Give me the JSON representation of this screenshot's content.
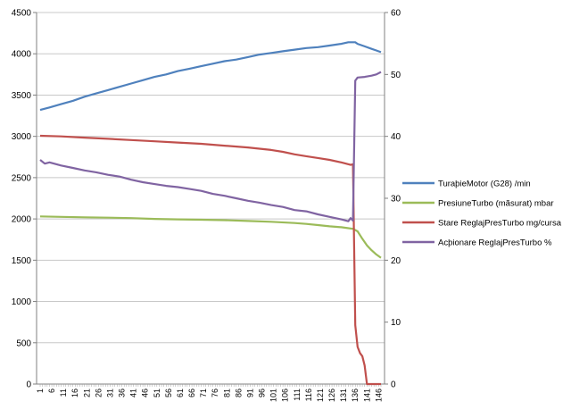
{
  "chart_data": {
    "type": "line",
    "title": "",
    "xlabel": "",
    "ylabel": "",
    "y2label": "",
    "xlim": [
      1,
      147
    ],
    "ylim": [
      0,
      4500
    ],
    "y2lim": [
      0,
      60
    ],
    "yticks": [
      0,
      500,
      1000,
      1500,
      2000,
      2500,
      3000,
      3500,
      4000,
      4500
    ],
    "y2ticks": [
      0,
      10,
      20,
      30,
      40,
      50,
      60
    ],
    "xtick_labels": [
      "1",
      "6",
      "11",
      "16",
      "21",
      "26",
      "31",
      "36",
      "41",
      "46",
      "51",
      "56",
      "61",
      "66",
      "71",
      "76",
      "81",
      "86",
      "91",
      "96",
      "101",
      "106",
      "111",
      "116",
      "121",
      "126",
      "131",
      "136",
      "141",
      "146"
    ],
    "grid": "horizontal major gridlines",
    "legend_position": "right",
    "series": [
      {
        "name": "TuraþieMotor (G28)  /min",
        "axis": "left",
        "color": "#4f81bd",
        "x": [
          1,
          5,
          10,
          15,
          20,
          25,
          30,
          35,
          40,
          45,
          50,
          55,
          60,
          65,
          70,
          75,
          80,
          85,
          90,
          95,
          100,
          105,
          110,
          115,
          120,
          125,
          130,
          133,
          136,
          137,
          140,
          143,
          145,
          147
        ],
        "y": [
          3320,
          3350,
          3390,
          3430,
          3480,
          3520,
          3560,
          3600,
          3640,
          3680,
          3720,
          3750,
          3790,
          3820,
          3850,
          3880,
          3910,
          3930,
          3960,
          3990,
          4010,
          4030,
          4050,
          4070,
          4080,
          4100,
          4120,
          4140,
          4140,
          4120,
          4090,
          4060,
          4040,
          4020
        ]
      },
      {
        "name": "PresiuneTurbo (mãsurat)  mbar",
        "axis": "left",
        "color": "#9bbb59",
        "x": [
          1,
          10,
          20,
          30,
          40,
          50,
          60,
          70,
          80,
          90,
          100,
          110,
          115,
          120,
          125,
          130,
          135,
          137,
          139,
          141,
          143,
          145,
          147
        ],
        "y": [
          2030,
          2025,
          2020,
          2015,
          2010,
          2000,
          1995,
          1990,
          1985,
          1975,
          1965,
          1950,
          1940,
          1925,
          1910,
          1900,
          1880,
          1850,
          1760,
          1680,
          1620,
          1570,
          1530
        ]
      },
      {
        "name": "Stare ReglajPresTurbo  mg/cursa",
        "axis": "right",
        "color": "#c0504d",
        "x": [
          1,
          10,
          20,
          30,
          40,
          50,
          60,
          70,
          80,
          90,
          95,
          100,
          105,
          110,
          115,
          120,
          125,
          130,
          134,
          135,
          136,
          137,
          138,
          139,
          140,
          141,
          142,
          143,
          144,
          146,
          147
        ],
        "y": [
          40.1,
          40.0,
          39.8,
          39.6,
          39.4,
          39.2,
          39.0,
          38.8,
          38.5,
          38.2,
          38.0,
          37.8,
          37.5,
          37.1,
          36.8,
          36.5,
          36.2,
          35.8,
          35.4,
          35.5,
          9.5,
          6.0,
          5.0,
          4.5,
          3.0,
          0.0,
          0.0,
          0.0,
          0.0,
          0.0,
          0.0
        ]
      },
      {
        "name": "Acþionare ReglajPresTurbo  %",
        "axis": "right",
        "color": "#8064a2",
        "x": [
          1,
          3,
          5,
          10,
          15,
          20,
          25,
          30,
          35,
          40,
          45,
          50,
          55,
          60,
          65,
          70,
          75,
          80,
          85,
          90,
          95,
          100,
          105,
          110,
          115,
          120,
          125,
          130,
          133,
          134,
          135,
          136,
          137,
          140,
          143,
          145,
          147
        ],
        "y": [
          36.2,
          35.6,
          35.8,
          35.3,
          34.9,
          34.5,
          34.2,
          33.8,
          33.5,
          33.0,
          32.6,
          32.3,
          32.0,
          31.8,
          31.5,
          31.2,
          30.7,
          30.4,
          30.0,
          29.6,
          29.3,
          28.9,
          28.6,
          28.1,
          27.9,
          27.4,
          27.0,
          26.6,
          26.3,
          26.8,
          26.4,
          49.0,
          49.5,
          49.6,
          49.8,
          50.0,
          50.4
        ]
      }
    ]
  }
}
